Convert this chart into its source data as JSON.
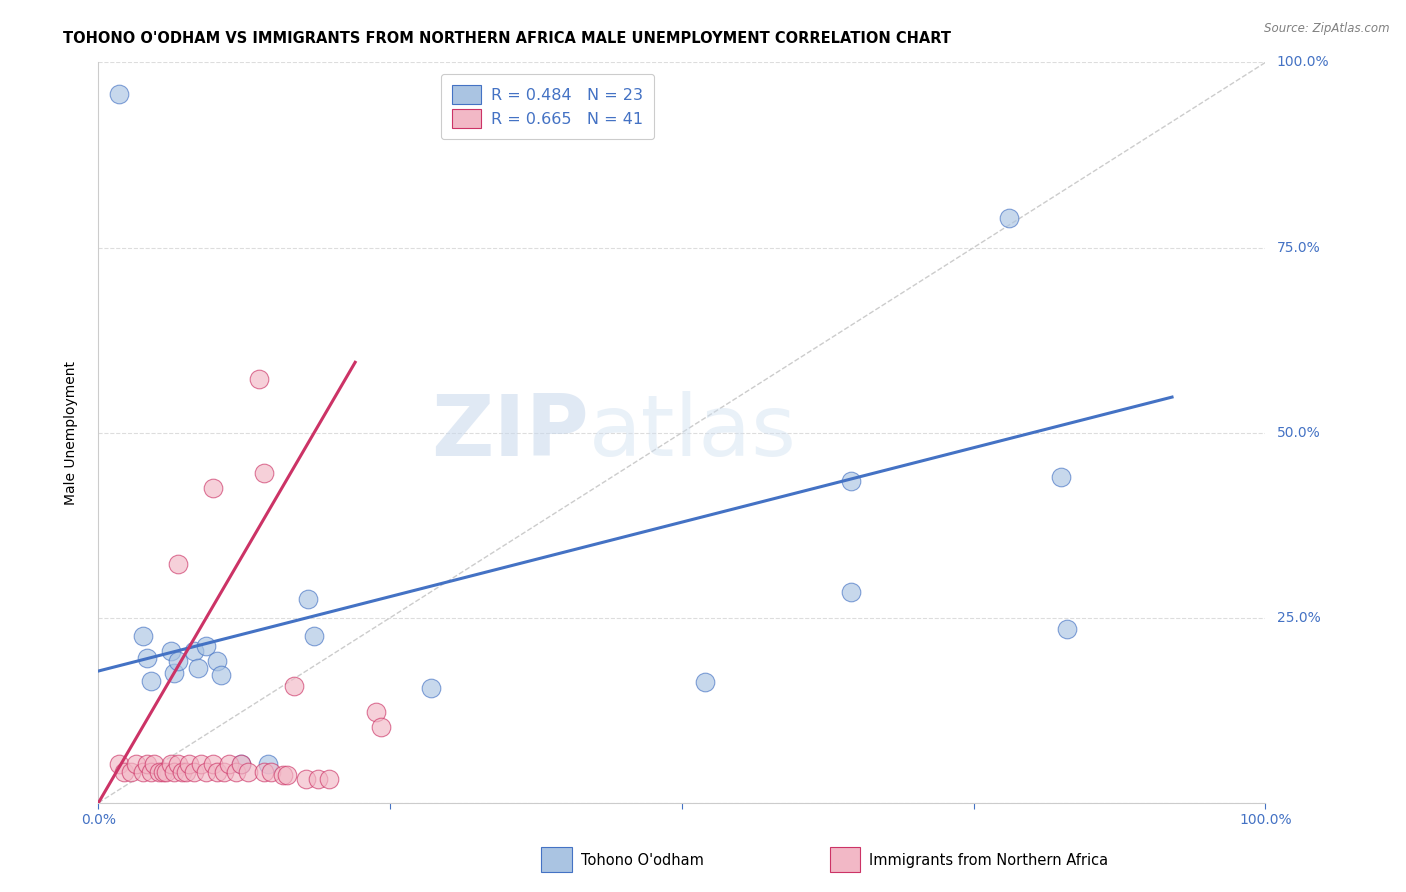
{
  "title": "TOHONO O'ODHAM VS IMMIGRANTS FROM NORTHERN AFRICA MALE UNEMPLOYMENT CORRELATION CHART",
  "source": "Source: ZipAtlas.com",
  "ylabel": "Male Unemployment",
  "xlim": [
    0.0,
    1.0
  ],
  "ylim": [
    0.0,
    1.0
  ],
  "xticks": [
    0.0,
    0.25,
    0.5,
    0.75,
    1.0
  ],
  "yticks": [
    0.0,
    0.25,
    0.5,
    0.75,
    1.0
  ],
  "xticklabels": [
    "0.0%",
    "",
    "",
    "",
    "100.0%"
  ],
  "yticklabels_right": [
    "",
    "25.0%",
    "50.0%",
    "75.0%",
    "100.0%"
  ],
  "blue_R": 0.484,
  "blue_N": 23,
  "pink_R": 0.665,
  "pink_N": 41,
  "legend_label_blue": "Tohono O'odham",
  "legend_label_pink": "Immigrants from Northern Africa",
  "blue_color": "#aac4e2",
  "pink_color": "#f2b8c6",
  "blue_line_color": "#4472c4",
  "pink_line_color": "#cc3366",
  "diagonal_color": "#cccccc",
  "background_color": "#ffffff",
  "grid_color": "#dddddd",
  "blue_scatter": [
    [
      0.018,
      0.958
    ],
    [
      0.78,
      0.79
    ],
    [
      0.18,
      0.275
    ],
    [
      0.185,
      0.225
    ],
    [
      0.285,
      0.155
    ],
    [
      0.52,
      0.163
    ],
    [
      0.645,
      0.285
    ],
    [
      0.825,
      0.44
    ],
    [
      0.645,
      0.435
    ],
    [
      0.83,
      0.235
    ],
    [
      0.038,
      0.225
    ],
    [
      0.042,
      0.195
    ],
    [
      0.045,
      0.165
    ],
    [
      0.062,
      0.205
    ],
    [
      0.065,
      0.175
    ],
    [
      0.068,
      0.192
    ],
    [
      0.082,
      0.205
    ],
    [
      0.085,
      0.182
    ],
    [
      0.092,
      0.212
    ],
    [
      0.102,
      0.192
    ],
    [
      0.105,
      0.172
    ],
    [
      0.122,
      0.052
    ],
    [
      0.145,
      0.052
    ]
  ],
  "pink_scatter": [
    [
      0.068,
      0.322
    ],
    [
      0.098,
      0.425
    ],
    [
      0.138,
      0.572
    ],
    [
      0.142,
      0.445
    ],
    [
      0.168,
      0.158
    ],
    [
      0.238,
      0.122
    ],
    [
      0.242,
      0.102
    ],
    [
      0.018,
      0.052
    ],
    [
      0.022,
      0.042
    ],
    [
      0.028,
      0.042
    ],
    [
      0.032,
      0.052
    ],
    [
      0.038,
      0.042
    ],
    [
      0.042,
      0.052
    ],
    [
      0.045,
      0.042
    ],
    [
      0.048,
      0.052
    ],
    [
      0.052,
      0.042
    ],
    [
      0.055,
      0.042
    ],
    [
      0.058,
      0.042
    ],
    [
      0.062,
      0.052
    ],
    [
      0.065,
      0.042
    ],
    [
      0.068,
      0.052
    ],
    [
      0.072,
      0.042
    ],
    [
      0.075,
      0.042
    ],
    [
      0.078,
      0.052
    ],
    [
      0.082,
      0.042
    ],
    [
      0.088,
      0.052
    ],
    [
      0.092,
      0.042
    ],
    [
      0.098,
      0.052
    ],
    [
      0.102,
      0.042
    ],
    [
      0.108,
      0.042
    ],
    [
      0.112,
      0.052
    ],
    [
      0.118,
      0.042
    ],
    [
      0.122,
      0.052
    ],
    [
      0.128,
      0.042
    ],
    [
      0.142,
      0.042
    ],
    [
      0.148,
      0.042
    ],
    [
      0.158,
      0.038
    ],
    [
      0.162,
      0.038
    ],
    [
      0.178,
      0.032
    ],
    [
      0.188,
      0.032
    ],
    [
      0.198,
      0.032
    ]
  ],
  "blue_line_x": [
    0.0,
    0.92
  ],
  "blue_line_y": [
    0.178,
    0.548
  ],
  "pink_line_x": [
    0.0,
    0.22
  ],
  "pink_line_y": [
    0.0,
    0.595
  ],
  "watermark_zip": "ZIP",
  "watermark_atlas": "atlas",
  "title_fontsize": 10.5,
  "axis_label_fontsize": 10,
  "tick_fontsize": 10,
  "legend_fontsize": 11.5,
  "scatter_size": 180,
  "scatter_alpha": 0.65
}
